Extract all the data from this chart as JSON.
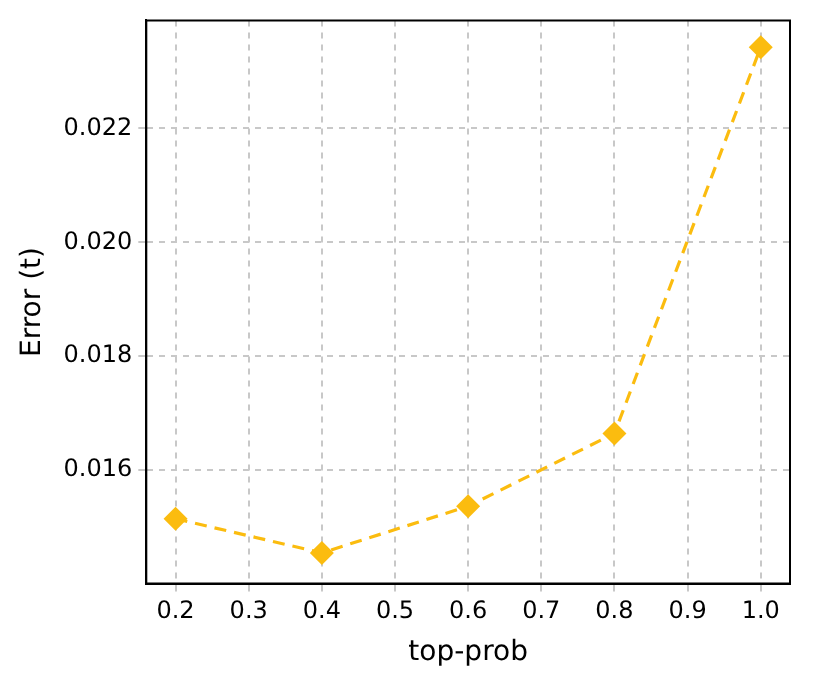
{
  "chart_data": {
    "type": "line",
    "xlabel": "top-prob",
    "ylabel": "Error (t)",
    "x": [
      0.2,
      0.4,
      0.6,
      0.8,
      1.0
    ],
    "series": [
      {
        "color": "#fbbc0f",
        "values": [
          0.01514,
          0.01454,
          0.01536,
          0.01664,
          0.02343
        ]
      }
    ],
    "xlim": [
      0.16,
      1.04
    ],
    "ylim": [
      0.014,
      0.0239
    ],
    "xticks": [
      {
        "value": 0.2,
        "label": "0.2"
      },
      {
        "value": 0.3,
        "label": "0.3"
      },
      {
        "value": 0.4,
        "label": "0.4"
      },
      {
        "value": 0.5,
        "label": "0.5"
      },
      {
        "value": 0.6,
        "label": "0.6"
      },
      {
        "value": 0.7,
        "label": "0.7"
      },
      {
        "value": 0.8,
        "label": "0.8"
      },
      {
        "value": 0.9,
        "label": "0.9"
      },
      {
        "value": 1.0,
        "label": "1.0"
      }
    ],
    "yticks": [
      {
        "value": 0.016,
        "label": "0.016"
      },
      {
        "value": 0.018,
        "label": "0.018"
      },
      {
        "value": 0.02,
        "label": "0.020"
      },
      {
        "value": 0.022,
        "label": "0.022"
      }
    ],
    "grid": true,
    "legend": false,
    "marker": "diamond",
    "line_style": "dashed"
  }
}
